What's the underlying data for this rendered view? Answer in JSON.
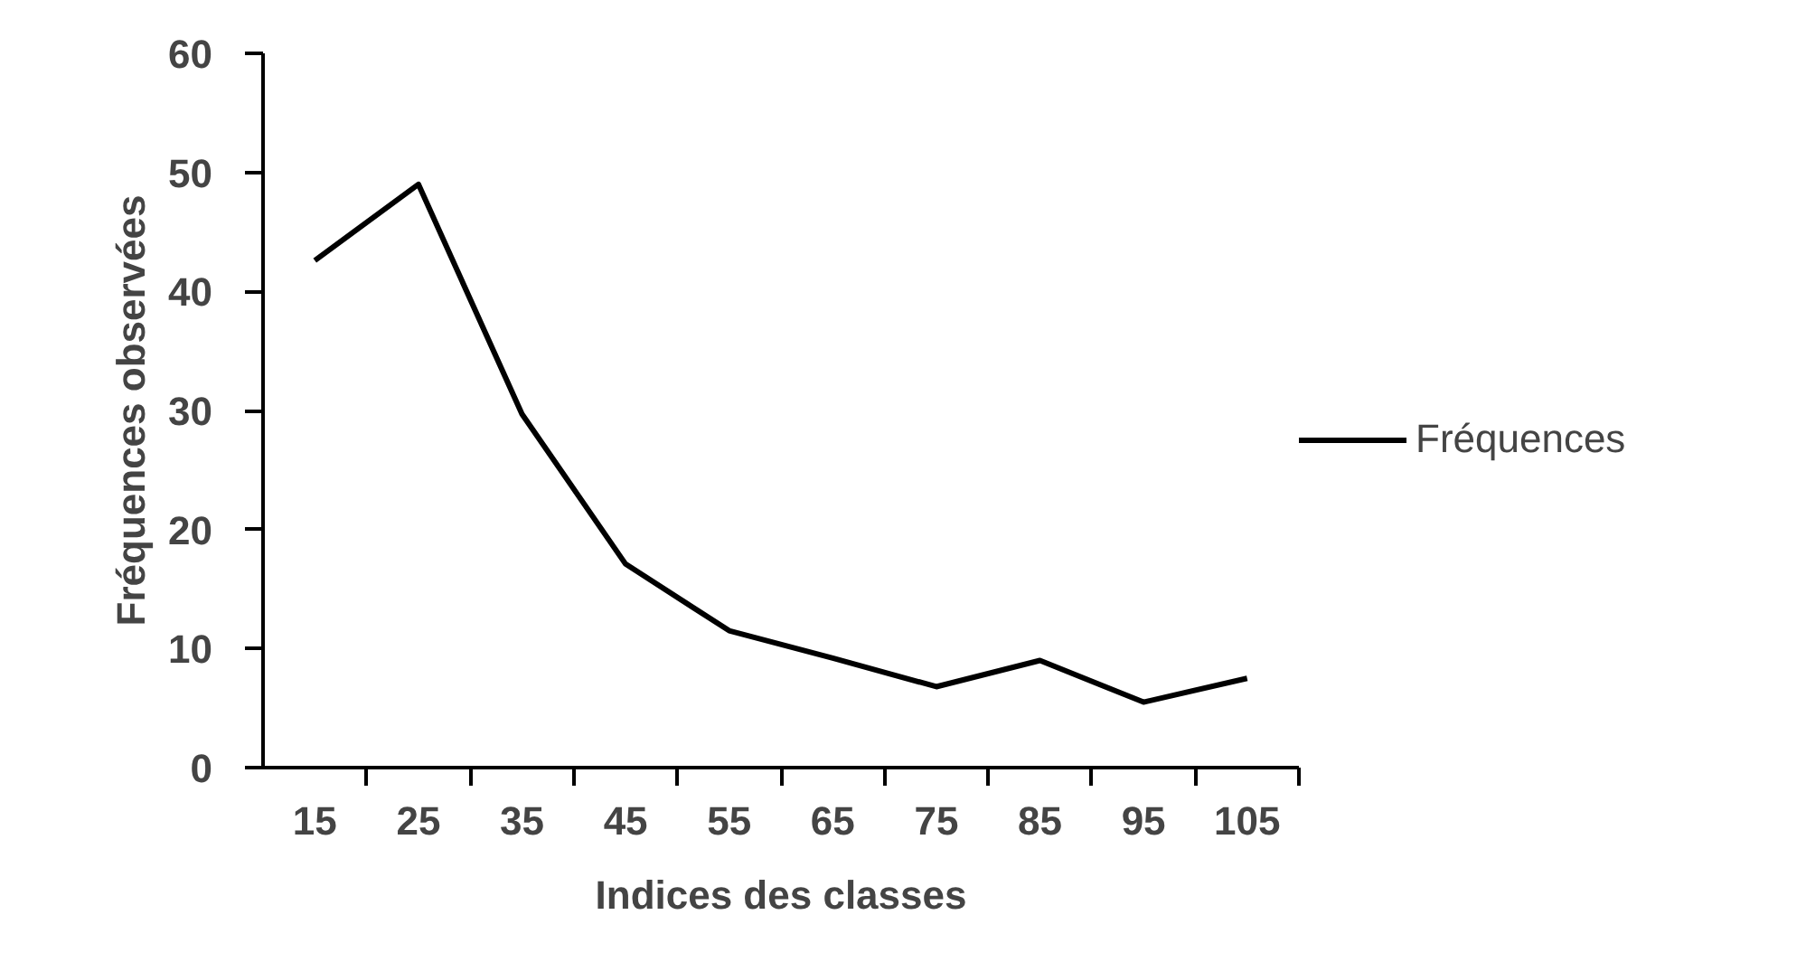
{
  "chart_data": {
    "type": "line",
    "xlabel": "Indices des classes",
    "ylabel": "Fréquences observées",
    "categories": [
      "15",
      "25",
      "35",
      "45",
      "55",
      "65",
      "75",
      "85",
      "95",
      "105"
    ],
    "series": [
      {
        "name": "Fréquences",
        "color": "#000000",
        "values": [
          42.6,
          49,
          29.7,
          17.1,
          11.5,
          9.2,
          6.8,
          9,
          5.5,
          7.5
        ]
      }
    ],
    "ylim": [
      0,
      60
    ],
    "yticks": [
      0,
      10,
      20,
      30,
      40,
      50,
      60
    ],
    "grid": false,
    "legend": "right",
    "marker": "none",
    "line_style": "solid"
  }
}
